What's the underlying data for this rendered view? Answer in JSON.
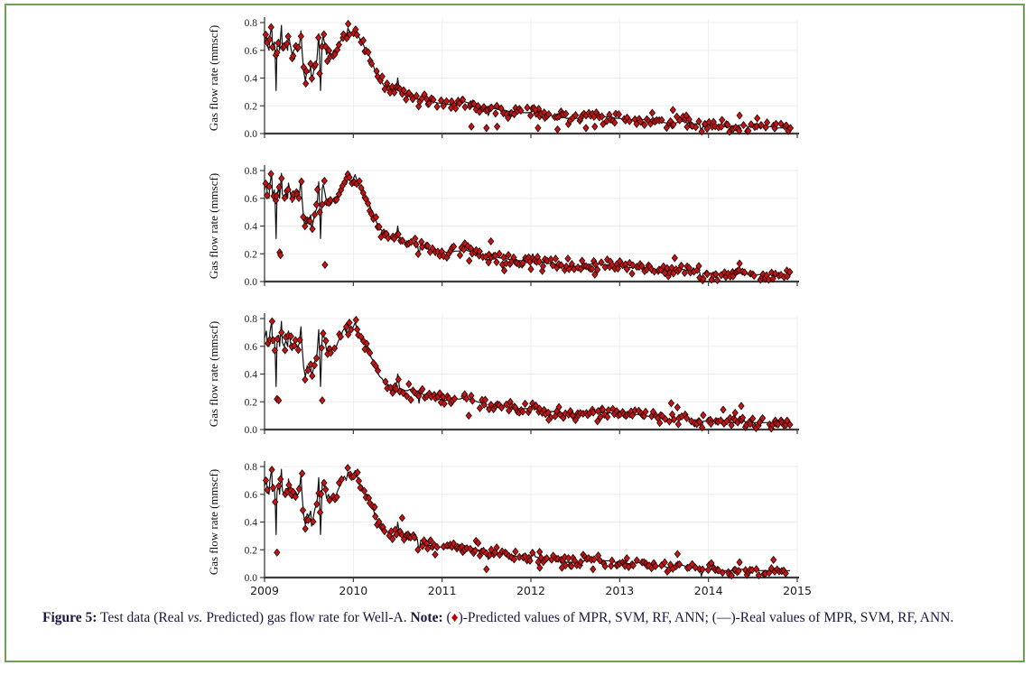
{
  "page": {
    "background": "#ffffff",
    "border_color": "#6aa44f"
  },
  "caption": {
    "figure_label": "Figure 5:",
    "part1": " Test data (Real ",
    "vs": "vs.",
    "part2": " Predicted) gas flow rate for Well-A. ",
    "note_label": "Note:",
    "part3": " (",
    "diamond": "♦",
    "part4": ")-Predicted values of MPR, SVM, RF, ANN; (—)-Real values of MPR, SVM, RF, ANN."
  },
  "chart_shared": {
    "ylabel": "Gas flow rate (mmscf)",
    "x_ticks": [
      "2009",
      "2010",
      "2011",
      "2012",
      "2013",
      "2014",
      "2015"
    ],
    "x_tick_values": [
      2009,
      2010,
      2011,
      2012,
      2013,
      2014,
      2015
    ],
    "y_ticks": [
      "0.0",
      "0.2",
      "0.4",
      "0.6",
      "0.8"
    ],
    "y_tick_values": [
      0.0,
      0.2,
      0.4,
      0.6,
      0.8
    ],
    "xlim": [
      2009,
      2015
    ],
    "ylim": [
      0.0,
      0.8
    ],
    "grid": true,
    "colors": {
      "line": "#121212",
      "marker_fill": "#c41515",
      "marker_edge": "#230303",
      "grid": "#ededed",
      "spine": "#3c3c3c",
      "tick_label": "#1c1c1c"
    },
    "real_line": [
      [
        2009.0,
        0.66
      ],
      [
        2009.02,
        0.71
      ],
      [
        2009.03,
        0.64
      ],
      [
        2009.05,
        0.6
      ],
      [
        2009.06,
        0.7
      ],
      [
        2009.08,
        0.78
      ],
      [
        2009.09,
        0.62
      ],
      [
        2009.11,
        0.66
      ],
      [
        2009.12,
        0.55
      ],
      [
        2009.13,
        0.31
      ],
      [
        2009.14,
        0.62
      ],
      [
        2009.16,
        0.68
      ],
      [
        2009.17,
        0.6
      ],
      [
        2009.19,
        0.78
      ],
      [
        2009.2,
        0.63
      ],
      [
        2009.22,
        0.6
      ],
      [
        2009.24,
        0.64
      ],
      [
        2009.26,
        0.6
      ],
      [
        2009.27,
        0.71
      ],
      [
        2009.29,
        0.64
      ],
      [
        2009.31,
        0.57
      ],
      [
        2009.33,
        0.6
      ],
      [
        2009.35,
        0.62
      ],
      [
        2009.37,
        0.59
      ],
      [
        2009.39,
        0.62
      ],
      [
        2009.41,
        0.74
      ],
      [
        2009.42,
        0.62
      ],
      [
        2009.44,
        0.45
      ],
      [
        2009.46,
        0.38
      ],
      [
        2009.48,
        0.46
      ],
      [
        2009.5,
        0.44
      ],
      [
        2009.52,
        0.48
      ],
      [
        2009.53,
        0.37
      ],
      [
        2009.55,
        0.44
      ],
      [
        2009.57,
        0.5
      ],
      [
        2009.59,
        0.53
      ],
      [
        2009.61,
        0.72
      ],
      [
        2009.62,
        0.55
      ],
      [
        2009.63,
        0.31
      ],
      [
        2009.65,
        0.67
      ],
      [
        2009.66,
        0.7
      ],
      [
        2009.68,
        0.64
      ],
      [
        2009.7,
        0.57
      ],
      [
        2009.72,
        0.6
      ],
      [
        2009.74,
        0.55
      ],
      [
        2009.76,
        0.57
      ],
      [
        2009.78,
        0.6
      ],
      [
        2009.8,
        0.58
      ],
      [
        2009.82,
        0.62
      ],
      [
        2009.84,
        0.65
      ],
      [
        2009.86,
        0.67
      ],
      [
        2009.88,
        0.71
      ],
      [
        2009.9,
        0.73
      ],
      [
        2009.92,
        0.7
      ],
      [
        2009.94,
        0.76
      ],
      [
        2009.96,
        0.73
      ],
      [
        2009.98,
        0.72
      ],
      [
        2010.0,
        0.74
      ],
      [
        2010.02,
        0.77
      ],
      [
        2010.04,
        0.73
      ],
      [
        2010.06,
        0.7
      ],
      [
        2010.08,
        0.67
      ],
      [
        2010.1,
        0.66
      ],
      [
        2010.12,
        0.63
      ],
      [
        2010.14,
        0.6
      ],
      [
        2010.16,
        0.6
      ],
      [
        2010.18,
        0.56
      ],
      [
        2010.2,
        0.52
      ],
      [
        2010.22,
        0.5
      ],
      [
        2010.24,
        0.46
      ],
      [
        2010.26,
        0.43
      ],
      [
        2010.28,
        0.4
      ],
      [
        2010.3,
        0.38
      ],
      [
        2010.32,
        0.37
      ],
      [
        2010.34,
        0.35
      ],
      [
        2010.36,
        0.34
      ],
      [
        2010.38,
        0.33
      ],
      [
        2010.4,
        0.32
      ],
      [
        2010.42,
        0.31
      ],
      [
        2010.44,
        0.3
      ],
      [
        2010.46,
        0.3
      ],
      [
        2010.48,
        0.3
      ],
      [
        2010.5,
        0.4
      ],
      [
        2010.52,
        0.3
      ],
      [
        2010.55,
        0.29
      ],
      [
        2010.58,
        0.28
      ],
      [
        2010.61,
        0.28
      ],
      [
        2010.64,
        0.29
      ],
      [
        2010.67,
        0.28
      ],
      [
        2010.7,
        0.27
      ],
      [
        2010.72,
        0.28
      ],
      [
        2010.74,
        0.19
      ],
      [
        2010.76,
        0.27
      ],
      [
        2010.79,
        0.25
      ],
      [
        2010.82,
        0.24
      ],
      [
        2010.86,
        0.23
      ],
      [
        2010.9,
        0.23
      ],
      [
        2010.95,
        0.22
      ],
      [
        2011.0,
        0.22
      ],
      [
        2011.05,
        0.21
      ],
      [
        2011.1,
        0.21
      ],
      [
        2011.15,
        0.22
      ],
      [
        2011.2,
        0.22
      ],
      [
        2011.25,
        0.23
      ],
      [
        2011.3,
        0.22
      ],
      [
        2011.35,
        0.21
      ],
      [
        2011.4,
        0.2
      ],
      [
        2011.45,
        0.19
      ],
      [
        2011.5,
        0.17
      ],
      [
        2011.52,
        0.13
      ],
      [
        2011.55,
        0.18
      ],
      [
        2011.6,
        0.18
      ],
      [
        2011.65,
        0.17
      ],
      [
        2011.7,
        0.17
      ],
      [
        2011.75,
        0.16
      ],
      [
        2011.8,
        0.16
      ],
      [
        2011.85,
        0.15
      ],
      [
        2011.9,
        0.15
      ],
      [
        2011.95,
        0.15
      ],
      [
        2012.0,
        0.15
      ],
      [
        2012.02,
        0.2
      ],
      [
        2012.05,
        0.15
      ],
      [
        2012.1,
        0.14
      ],
      [
        2012.15,
        0.14
      ],
      [
        2012.2,
        0.13
      ],
      [
        2012.25,
        0.13
      ],
      [
        2012.3,
        0.12
      ],
      [
        2012.35,
        0.12
      ],
      [
        2012.4,
        0.11
      ],
      [
        2012.45,
        0.11
      ],
      [
        2012.5,
        0.11
      ],
      [
        2012.55,
        0.11
      ],
      [
        2012.6,
        0.12
      ],
      [
        2012.65,
        0.12
      ],
      [
        2012.7,
        0.13
      ],
      [
        2012.75,
        0.13
      ],
      [
        2012.8,
        0.12
      ],
      [
        2012.85,
        0.12
      ],
      [
        2012.9,
        0.12
      ],
      [
        2012.95,
        0.11
      ],
      [
        2013.0,
        0.11
      ],
      [
        2013.05,
        0.1
      ],
      [
        2013.1,
        0.1
      ],
      [
        2013.15,
        0.1
      ],
      [
        2013.2,
        0.11
      ],
      [
        2013.25,
        0.1
      ],
      [
        2013.3,
        0.1
      ],
      [
        2013.35,
        0.09
      ],
      [
        2013.4,
        0.09
      ],
      [
        2013.45,
        0.08
      ],
      [
        2013.5,
        0.08
      ],
      [
        2013.55,
        0.07
      ],
      [
        2013.6,
        0.07
      ],
      [
        2013.65,
        0.08
      ],
      [
        2013.7,
        0.09
      ],
      [
        2013.75,
        0.08
      ],
      [
        2013.8,
        0.07
      ],
      [
        2013.85,
        0.07
      ],
      [
        2013.9,
        0.07
      ],
      [
        2013.92,
        0.01
      ],
      [
        2013.94,
        0.06
      ],
      [
        2014.0,
        0.06
      ],
      [
        2014.05,
        0.06
      ],
      [
        2014.1,
        0.06
      ],
      [
        2014.15,
        0.05
      ],
      [
        2014.2,
        0.05
      ],
      [
        2014.25,
        0.05
      ],
      [
        2014.3,
        0.05
      ],
      [
        2014.35,
        0.06
      ],
      [
        2014.4,
        0.06
      ],
      [
        2014.45,
        0.05
      ],
      [
        2014.5,
        0.05
      ],
      [
        2014.55,
        0.05
      ],
      [
        2014.6,
        0.05
      ],
      [
        2014.65,
        0.05
      ],
      [
        2014.7,
        0.05
      ],
      [
        2014.75,
        0.04
      ],
      [
        2014.8,
        0.04
      ],
      [
        2014.85,
        0.04
      ],
      [
        2014.9,
        0.05
      ],
      [
        2014.92,
        0.05
      ]
    ]
  },
  "chart_data": [
    {
      "id": "panel-1",
      "type": "line",
      "title": "",
      "xlabel": "",
      "ylabel": "Gas flow rate (mmscf)",
      "xlim": [
        2009,
        2015
      ],
      "ylim": [
        0.0,
        0.8
      ],
      "show_x_tick_labels": false,
      "series": [
        {
          "name": "Real",
          "style": "line",
          "points_ref": "chart_shared.real_line"
        },
        {
          "name": "Predicted",
          "style": "scatter",
          "marker": "diamond",
          "seed": 101,
          "jitter": 0.05,
          "density": 0.82,
          "outliers": [
            [
              2011.33,
              0.05
            ],
            [
              2011.5,
              0.04
            ],
            [
              2011.62,
              0.05
            ],
            [
              2012.05,
              0.17
            ],
            [
              2012.08,
              0.04
            ],
            [
              2012.3,
              0.03
            ],
            [
              2012.62,
              0.04
            ],
            [
              2012.72,
              0.05
            ],
            [
              2013.6,
              0.17
            ],
            [
              2013.75,
              0.13
            ],
            [
              2014.35,
              0.13
            ],
            [
              2014.55,
              0.11
            ]
          ]
        }
      ]
    },
    {
      "id": "panel-2",
      "type": "line",
      "title": "",
      "xlabel": "",
      "ylabel": "Gas flow rate (mmscf)",
      "xlim": [
        2009,
        2015
      ],
      "ylim": [
        0.0,
        0.8
      ],
      "show_x_tick_labels": false,
      "series": [
        {
          "name": "Real",
          "style": "line",
          "points_ref": "chart_shared.real_line"
        },
        {
          "name": "Predicted",
          "style": "scatter",
          "marker": "diamond",
          "seed": 202,
          "jitter": 0.05,
          "density": 0.82,
          "outliers": [
            [
              2009.17,
              0.21
            ],
            [
              2009.18,
              0.19
            ],
            [
              2009.68,
              0.12
            ],
            [
              2011.55,
              0.29
            ],
            [
              2011.7,
              0.08
            ],
            [
              2012.0,
              0.09
            ],
            [
              2012.72,
              0.05
            ],
            [
              2013.62,
              0.17
            ],
            [
              2014.1,
              0.01
            ],
            [
              2014.35,
              0.13
            ]
          ]
        }
      ]
    },
    {
      "id": "panel-3",
      "type": "line",
      "title": "",
      "xlabel": "",
      "ylabel": "Gas flow rate (mmscf)",
      "xlim": [
        2009,
        2015
      ],
      "ylim": [
        0.0,
        0.8
      ],
      "show_x_tick_labels": false,
      "series": [
        {
          "name": "Real",
          "style": "line",
          "points_ref": "chart_shared.real_line"
        },
        {
          "name": "Predicted",
          "style": "scatter",
          "marker": "diamond",
          "seed": 303,
          "jitter": 0.05,
          "density": 0.82,
          "outliers": [
            [
              2009.14,
              0.22
            ],
            [
              2009.16,
              0.21
            ],
            [
              2009.65,
              0.21
            ],
            [
              2011.3,
              0.1
            ],
            [
              2012.2,
              0.07
            ],
            [
              2012.75,
              0.06
            ],
            [
              2013.58,
              0.19
            ],
            [
              2013.65,
              0.16
            ],
            [
              2014.3,
              0.12
            ],
            [
              2014.37,
              0.17
            ]
          ]
        }
      ]
    },
    {
      "id": "panel-4",
      "type": "line",
      "title": "",
      "xlabel": "",
      "ylabel": "Gas flow rate (mmscf)",
      "xlim": [
        2009,
        2015
      ],
      "ylim": [
        0.0,
        0.8
      ],
      "show_x_tick_labels": true,
      "series": [
        {
          "name": "Real",
          "style": "line",
          "points_ref": "chart_shared.real_line"
        },
        {
          "name": "Predicted",
          "style": "scatter",
          "marker": "diamond",
          "seed": 404,
          "jitter": 0.05,
          "density": 0.82,
          "outliers": [
            [
              2009.14,
              0.18
            ],
            [
              2010.55,
              0.43
            ],
            [
              2011.5,
              0.06
            ],
            [
              2012.1,
              0.07
            ],
            [
              2012.35,
              0.07
            ],
            [
              2012.7,
              0.06
            ],
            [
              2013.65,
              0.17
            ],
            [
              2014.35,
              0.11
            ]
          ]
        }
      ]
    }
  ]
}
